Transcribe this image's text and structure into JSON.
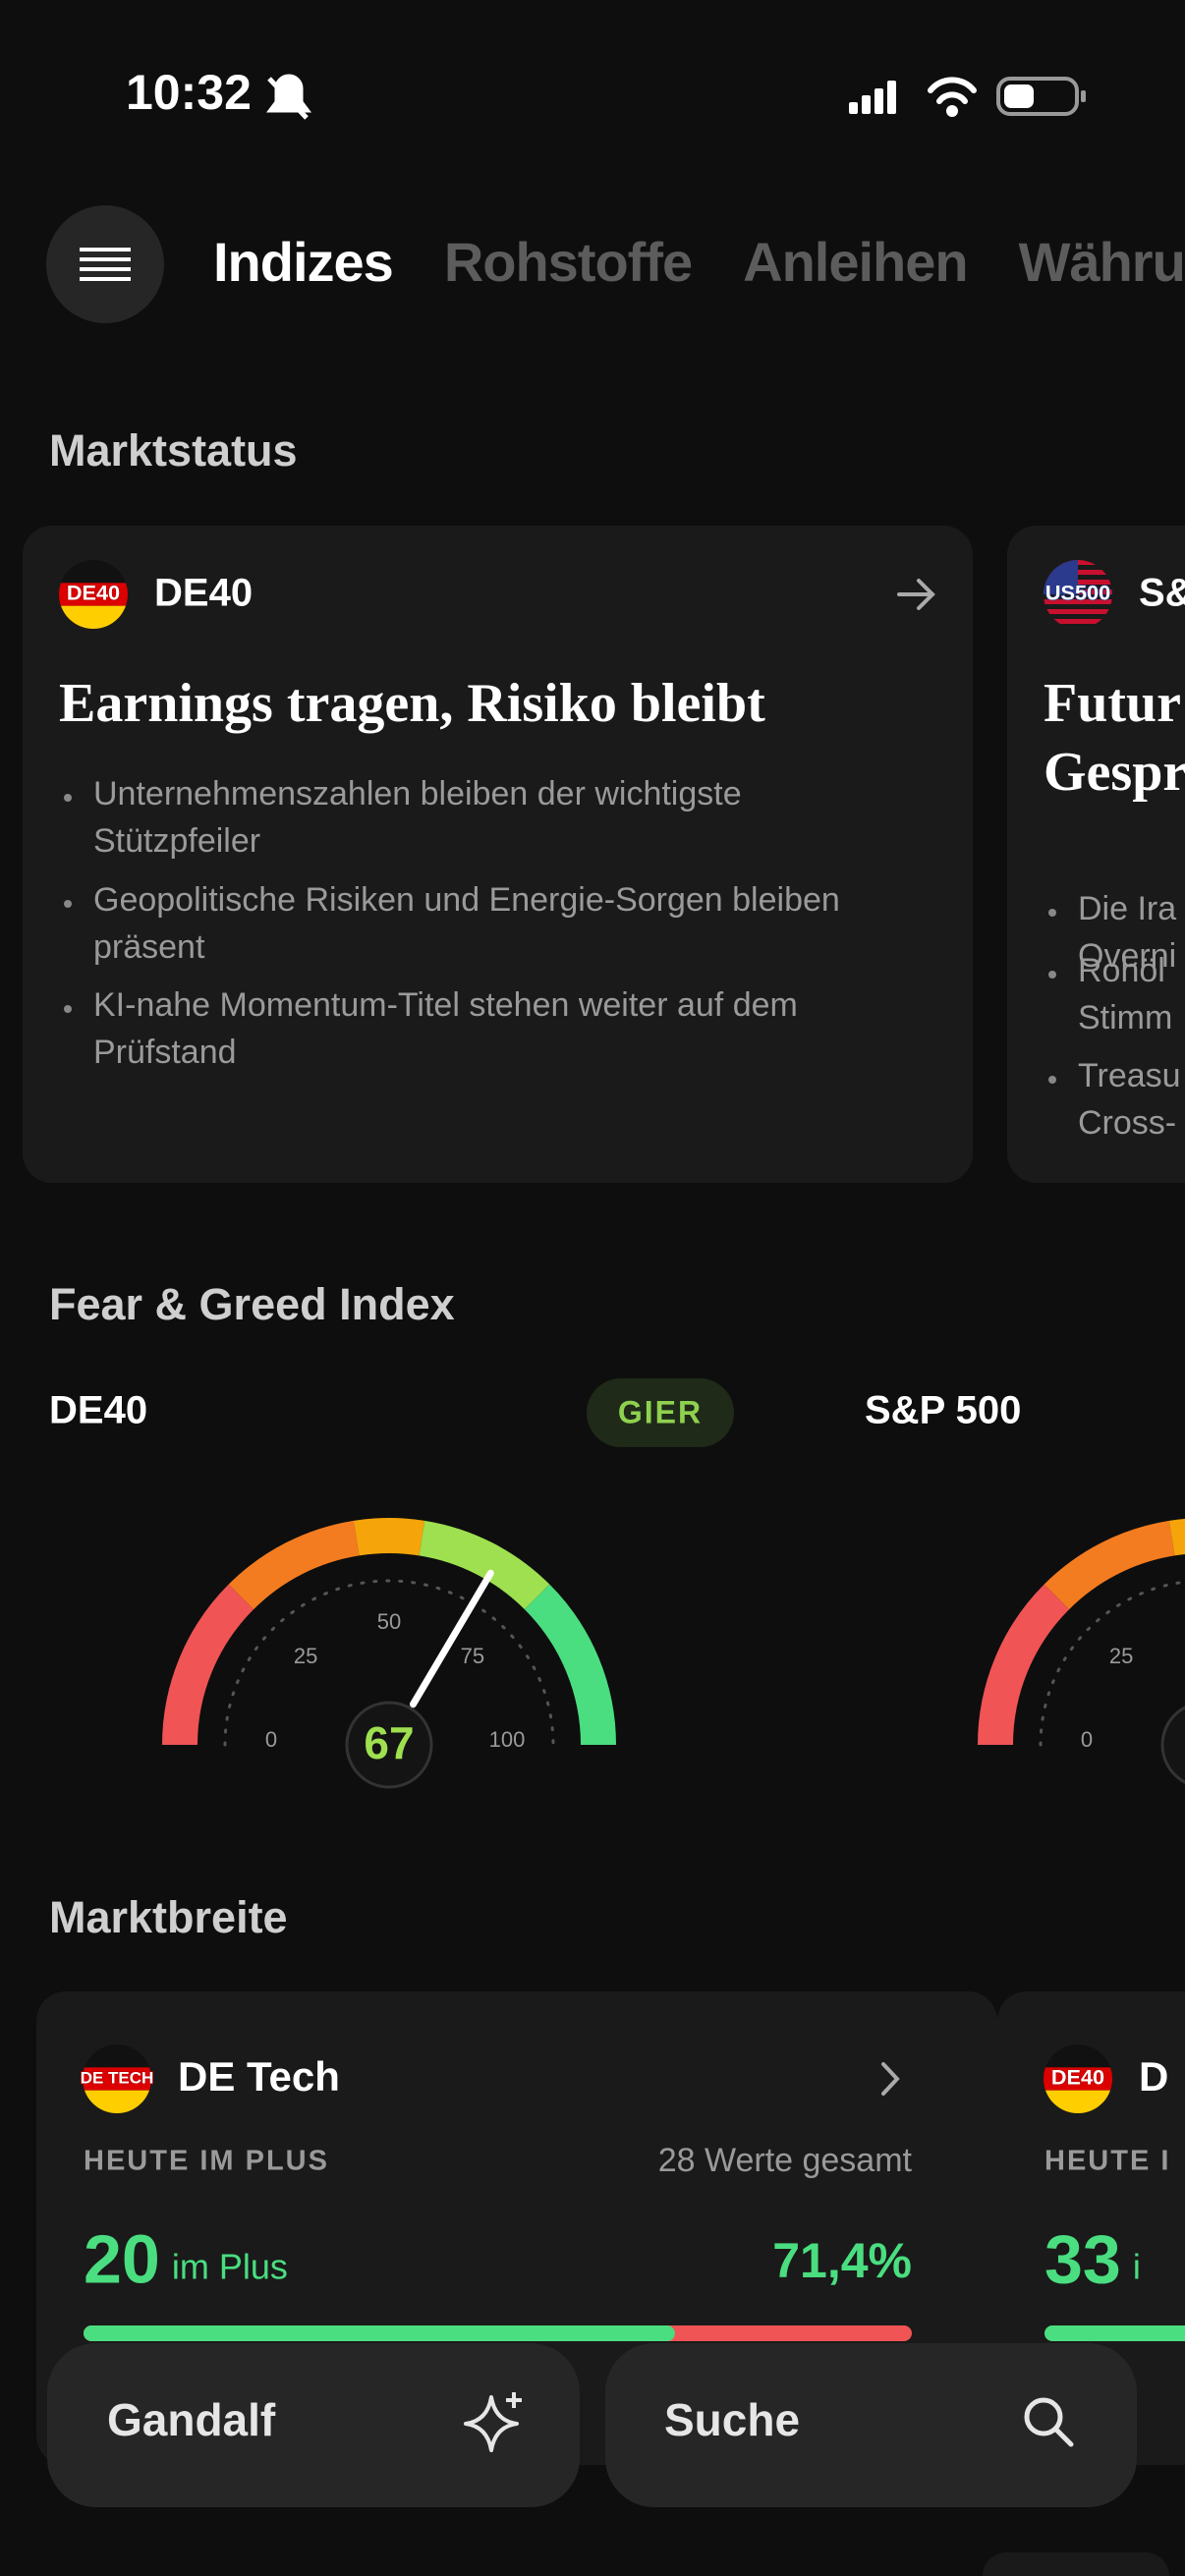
{
  "status_bar": {
    "time": "10:32"
  },
  "tabs": [
    "Indizes",
    "Rohstoffe",
    "Anleihen",
    "Währungen"
  ],
  "sections": {
    "market_status": "Marktstatus",
    "fear_greed": "Fear & Greed Index",
    "breadth": "Marktbreite"
  },
  "status_cards": [
    {
      "icon": "DE40",
      "name": "DE40",
      "title": [
        "Earnings tragen, Risiko bleibt"
      ],
      "bullets": [
        [
          "Unternehmenszahlen bleiben der wichtigste",
          "Stützpfeiler"
        ],
        [
          "Geopolitische Risiken und Energie-Sorgen bleiben",
          "präsent"
        ],
        [
          "KI-nahe Momentum-Titel stehen weiter auf dem",
          "Prüfstand"
        ]
      ]
    },
    {
      "icon": "US500",
      "name": "S&",
      "title": [
        "Futur",
        "Gespr"
      ],
      "bullets": [
        [
          "Die Ira",
          "Overni"
        ],
        [
          "Rohöl",
          "Stimm"
        ],
        [
          "Treasu",
          "Cross-"
        ]
      ]
    }
  ],
  "gauges": [
    {
      "name": "DE40",
      "badge": "GIER",
      "value": 67,
      "lim": [
        0,
        100
      ],
      "ticks": [
        0,
        25,
        50,
        75,
        100
      ]
    },
    {
      "name": "S&P 500",
      "lim": [
        0,
        100
      ],
      "ticks": [
        0,
        25
      ]
    }
  ],
  "breadth_cards": [
    {
      "icon": "DE TECH",
      "name": "DE Tech",
      "label": "HEUTE IM PLUS",
      "total": "28 Werte gesamt",
      "count": 20,
      "count_suffix": "im Plus",
      "percent": {
        "value": 71.4,
        "label": "71,4%"
      }
    },
    {
      "icon": "DE40",
      "name": "D",
      "label": "HEUTE I",
      "count": 33,
      "count_suffix": "i"
    }
  ],
  "bottom_bar": {
    "assistant": "Gandalf",
    "search": "Suche"
  }
}
